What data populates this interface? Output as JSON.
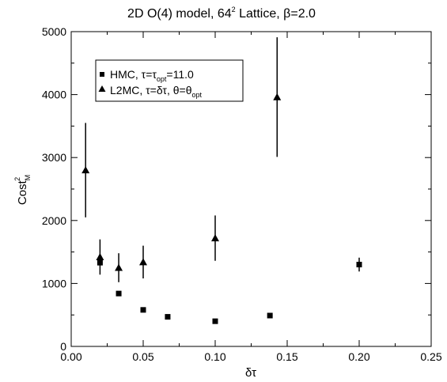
{
  "chart_data": {
    "type": "scatter",
    "title": {
      "main": "2D O(4) model, 64",
      "sup": "2",
      "rest": " Lattice, β=2.0"
    },
    "xlabel": "δτ",
    "ylabel": {
      "main": "Cost",
      "sub": "M",
      "sup": "2"
    },
    "xlim": [
      0.0,
      0.25
    ],
    "ylim": [
      0,
      5000
    ],
    "x_ticks": [
      "0.00",
      "0.05",
      "0.10",
      "0.15",
      "0.20",
      "0.25"
    ],
    "y_ticks": [
      "0",
      "1000",
      "2000",
      "3000",
      "4000",
      "5000"
    ],
    "legend_position": "top-left",
    "series": [
      {
        "name": {
          "main": "HMC, τ=τ",
          "sub": "opt",
          "rest": "=11.0"
        },
        "marker": "square",
        "points": [
          {
            "x": 0.02,
            "y": 1330,
            "err": 0
          },
          {
            "x": 0.033,
            "y": 840,
            "err": 0
          },
          {
            "x": 0.05,
            "y": 580,
            "err": 0
          },
          {
            "x": 0.067,
            "y": 470,
            "err": 0
          },
          {
            "x": 0.1,
            "y": 400,
            "err": 0
          },
          {
            "x": 0.138,
            "y": 490,
            "err": 0
          },
          {
            "x": 0.2,
            "y": 1300,
            "err": 110
          }
        ]
      },
      {
        "name": {
          "main": "L2MC, τ=δτ, θ=θ",
          "sub": "opt",
          "rest": ""
        },
        "marker": "triangle",
        "points": [
          {
            "x": 0.01,
            "y": 2800,
            "err": 750
          },
          {
            "x": 0.02,
            "y": 1420,
            "err": 280
          },
          {
            "x": 0.033,
            "y": 1250,
            "err": 230
          },
          {
            "x": 0.05,
            "y": 1340,
            "err": 260
          },
          {
            "x": 0.1,
            "y": 1720,
            "err": 360
          },
          {
            "x": 0.143,
            "y": 3960,
            "err": 950
          }
        ]
      }
    ]
  }
}
